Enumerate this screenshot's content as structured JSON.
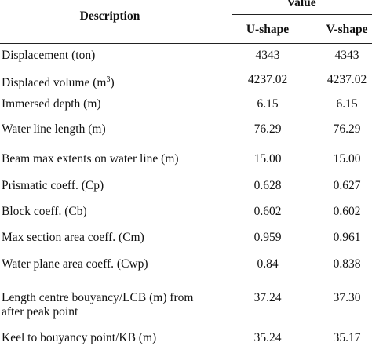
{
  "header": {
    "description": "Description",
    "value": "Value",
    "columns": [
      "U-shape",
      "V-shape"
    ]
  },
  "table": {
    "rows": [
      {
        "label": "Displacement (ton)",
        "u": "4343",
        "v": "4343"
      },
      {
        "label": "Displaced volume (m",
        "sup": "3",
        "label_end": ")",
        "u": "4237.02",
        "v": "4237.02"
      },
      {
        "label": "Immersed depth (m)",
        "u": "6.15",
        "v": "6.15"
      },
      {
        "label": "Water line length (m)",
        "u": "76.29",
        "v": "76.29"
      },
      {
        "label": "Beam max extents on water line (m)",
        "u": "15.00",
        "v": "15.00"
      },
      {
        "label": "Prismatic coeff. (Cp)",
        "u": "0.628",
        "v": "0.627"
      },
      {
        "label": "Block coeff. (Cb)",
        "u": "0.602",
        "v": "0.602"
      },
      {
        "label": "Max section area coeff. (Cm)",
        "u": "0.959",
        "v": "0.961"
      },
      {
        "label": "Water plane area coeff. (Cwp)",
        "u": "0.84",
        "v": "0.838"
      },
      {
        "label_lines": [
          "Length centre bouyancy/LCB (m) from",
          "after peak point"
        ],
        "u": "37.24",
        "v": "37.30"
      },
      {
        "label": "Keel to bouyancy point/KB (m)",
        "u": "35.24",
        "v": "35.17"
      }
    ]
  }
}
